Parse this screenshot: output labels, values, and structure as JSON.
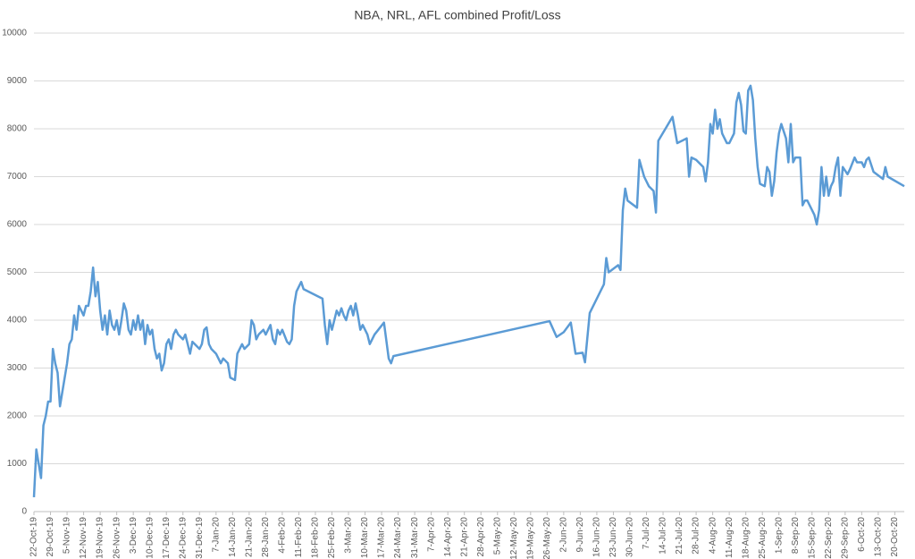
{
  "chart_data": {
    "type": "line",
    "title": "NBA, NRL, AFL combined Profit/Loss",
    "ylim": [
      0,
      10000
    ],
    "yticks": [
      0,
      1000,
      2000,
      3000,
      4000,
      5000,
      6000,
      7000,
      8000,
      9000,
      10000
    ],
    "xlim": [
      "2019-10-22",
      "2020-10-24"
    ],
    "xticks": [
      {
        "value": "2019-10-22",
        "label": "22-Oct-19"
      },
      {
        "value": "2019-10-29",
        "label": "29-Oct-19"
      },
      {
        "value": "2019-11-05",
        "label": "5-Nov-19"
      },
      {
        "value": "2019-11-12",
        "label": "12-Nov-19"
      },
      {
        "value": "2019-11-19",
        "label": "19-Nov-19"
      },
      {
        "value": "2019-11-26",
        "label": "26-Nov-19"
      },
      {
        "value": "2019-12-03",
        "label": "3-Dec-19"
      },
      {
        "value": "2019-12-10",
        "label": "10-Dec-19"
      },
      {
        "value": "2019-12-17",
        "label": "17-Dec-19"
      },
      {
        "value": "2019-12-24",
        "label": "24-Dec-19"
      },
      {
        "value": "2019-12-31",
        "label": "31-Dec-19"
      },
      {
        "value": "2020-01-07",
        "label": "7-Jan-20"
      },
      {
        "value": "2020-01-14",
        "label": "14-Jan-20"
      },
      {
        "value": "2020-01-21",
        "label": "21-Jan-20"
      },
      {
        "value": "2020-01-28",
        "label": "28-Jan-20"
      },
      {
        "value": "2020-02-04",
        "label": "4-Feb-20"
      },
      {
        "value": "2020-02-11",
        "label": "11-Feb-20"
      },
      {
        "value": "2020-02-18",
        "label": "18-Feb-20"
      },
      {
        "value": "2020-02-25",
        "label": "25-Feb-20"
      },
      {
        "value": "2020-03-03",
        "label": "3-Mar-20"
      },
      {
        "value": "2020-03-10",
        "label": "10-Mar-20"
      },
      {
        "value": "2020-03-17",
        "label": "17-Mar-20"
      },
      {
        "value": "2020-03-24",
        "label": "24-Mar-20"
      },
      {
        "value": "2020-03-31",
        "label": "31-Mar-20"
      },
      {
        "value": "2020-04-07",
        "label": "7-Apr-20"
      },
      {
        "value": "2020-04-14",
        "label": "14-Apr-20"
      },
      {
        "value": "2020-04-21",
        "label": "21-Apr-20"
      },
      {
        "value": "2020-04-28",
        "label": "28-Apr-20"
      },
      {
        "value": "2020-05-05",
        "label": "5-May-20"
      },
      {
        "value": "2020-05-12",
        "label": "12-May-20"
      },
      {
        "value": "2020-05-19",
        "label": "19-May-20"
      },
      {
        "value": "2020-05-26",
        "label": "26-May-20"
      },
      {
        "value": "2020-06-02",
        "label": "2-Jun-20"
      },
      {
        "value": "2020-06-09",
        "label": "9-Jun-20"
      },
      {
        "value": "2020-06-16",
        "label": "16-Jun-20"
      },
      {
        "value": "2020-06-23",
        "label": "23-Jun-20"
      },
      {
        "value": "2020-06-30",
        "label": "30-Jun-20"
      },
      {
        "value": "2020-07-07",
        "label": "7-Jul-20"
      },
      {
        "value": "2020-07-14",
        "label": "14-Jul-20"
      },
      {
        "value": "2020-07-21",
        "label": "21-Jul-20"
      },
      {
        "value": "2020-07-28",
        "label": "28-Jul-20"
      },
      {
        "value": "2020-08-04",
        "label": "4-Aug-20"
      },
      {
        "value": "2020-08-11",
        "label": "11-Aug-20"
      },
      {
        "value": "2020-08-18",
        "label": "18-Aug-20"
      },
      {
        "value": "2020-08-25",
        "label": "25-Aug-20"
      },
      {
        "value": "2020-09-01",
        "label": "1-Sep-20"
      },
      {
        "value": "2020-09-08",
        "label": "8-Sep-20"
      },
      {
        "value": "2020-09-15",
        "label": "15-Sep-20"
      },
      {
        "value": "2020-09-22",
        "label": "22-Sep-20"
      },
      {
        "value": "2020-09-29",
        "label": "29-Sep-20"
      },
      {
        "value": "2020-10-06",
        "label": "6-Oct-20"
      },
      {
        "value": "2020-10-13",
        "label": "13-Oct-20"
      },
      {
        "value": "2020-10-20",
        "label": "20-Oct-20"
      }
    ],
    "grid": true,
    "color": "#5b9bd5",
    "x": [
      "2019-10-22",
      "2019-10-23",
      "2019-10-24",
      "2019-10-25",
      "2019-10-26",
      "2019-10-27",
      "2019-10-28",
      "2019-10-29",
      "2019-10-30",
      "2019-10-31",
      "2019-11-01",
      "2019-11-02",
      "2019-11-03",
      "2019-11-05",
      "2019-11-06",
      "2019-11-07",
      "2019-11-08",
      "2019-11-09",
      "2019-11-10",
      "2019-11-11",
      "2019-11-12",
      "2019-11-13",
      "2019-11-14",
      "2019-11-15",
      "2019-11-16",
      "2019-11-17",
      "2019-11-18",
      "2019-11-19",
      "2019-11-20",
      "2019-11-21",
      "2019-11-22",
      "2019-11-23",
      "2019-11-24",
      "2019-11-25",
      "2019-11-26",
      "2019-11-27",
      "2019-11-28",
      "2019-11-29",
      "2019-11-30",
      "2019-12-01",
      "2019-12-02",
      "2019-12-03",
      "2019-12-04",
      "2019-12-05",
      "2019-12-06",
      "2019-12-07",
      "2019-12-08",
      "2019-12-09",
      "2019-12-10",
      "2019-12-11",
      "2019-12-12",
      "2019-12-13",
      "2019-12-14",
      "2019-12-15",
      "2019-12-16",
      "2019-12-17",
      "2019-12-18",
      "2019-12-19",
      "2019-12-20",
      "2019-12-21",
      "2019-12-22",
      "2019-12-23",
      "2019-12-24",
      "2019-12-25",
      "2019-12-26",
      "2019-12-27",
      "2019-12-28",
      "2019-12-29",
      "2019-12-31",
      "2020-01-01",
      "2020-01-02",
      "2020-01-03",
      "2020-01-04",
      "2020-01-05",
      "2020-01-07",
      "2020-01-08",
      "2020-01-09",
      "2020-01-10",
      "2020-01-12",
      "2020-01-13",
      "2020-01-15",
      "2020-01-16",
      "2020-01-17",
      "2020-01-18",
      "2020-01-19",
      "2020-01-21",
      "2020-01-22",
      "2020-01-23",
      "2020-01-24",
      "2020-01-25",
      "2020-01-27",
      "2020-01-28",
      "2020-01-29",
      "2020-01-30",
      "2020-01-31",
      "2020-02-01",
      "2020-02-02",
      "2020-02-03",
      "2020-02-04",
      "2020-02-06",
      "2020-02-07",
      "2020-02-08",
      "2020-02-09",
      "2020-02-10",
      "2020-02-11",
      "2020-02-12",
      "2020-02-13",
      "2020-02-19",
      "2020-02-21",
      "2020-02-22",
      "2020-02-23",
      "2020-02-24",
      "2020-02-25",
      "2020-02-26",
      "2020-02-27",
      "2020-02-28",
      "2020-02-29",
      "2020-03-01",
      "2020-03-02",
      "2020-03-03",
      "2020-03-04",
      "2020-03-05",
      "2020-03-06",
      "2020-03-07",
      "2020-03-08",
      "2020-03-09",
      "2020-03-10",
      "2020-03-11",
      "2020-03-12",
      "2020-03-14",
      "2020-03-18",
      "2020-03-20",
      "2020-03-21",
      "2020-03-22",
      "2020-05-27",
      "2020-05-30",
      "2020-06-02",
      "2020-06-05",
      "2020-06-07",
      "2020-06-10",
      "2020-06-11",
      "2020-06-13",
      "2020-06-19",
      "2020-06-20",
      "2020-06-21",
      "2020-06-25",
      "2020-06-26",
      "2020-06-27",
      "2020-06-28",
      "2020-06-29",
      "2020-07-03",
      "2020-07-04",
      "2020-07-06",
      "2020-07-08",
      "2020-07-10",
      "2020-07-11",
      "2020-07-12",
      "2020-07-18",
      "2020-07-20",
      "2020-07-24",
      "2020-07-25",
      "2020-07-26",
      "2020-07-28",
      "2020-07-31",
      "2020-08-01",
      "2020-08-02",
      "2020-08-03",
      "2020-08-04",
      "2020-08-05",
      "2020-08-06",
      "2020-08-07",
      "2020-08-08",
      "2020-08-10",
      "2020-08-11",
      "2020-08-13",
      "2020-08-14",
      "2020-08-15",
      "2020-08-16",
      "2020-08-17",
      "2020-08-18",
      "2020-08-19",
      "2020-08-20",
      "2020-08-21",
      "2020-08-22",
      "2020-08-23",
      "2020-08-24",
      "2020-08-26",
      "2020-08-27",
      "2020-08-28",
      "2020-08-29",
      "2020-08-30",
      "2020-08-31",
      "2020-09-01",
      "2020-09-02",
      "2020-09-04",
      "2020-09-05",
      "2020-09-06",
      "2020-09-07",
      "2020-09-08",
      "2020-09-10",
      "2020-09-11",
      "2020-09-12",
      "2020-09-13",
      "2020-09-15",
      "2020-09-16",
      "2020-09-17",
      "2020-09-18",
      "2020-09-19",
      "2020-09-20",
      "2020-09-21",
      "2020-09-22",
      "2020-09-23",
      "2020-09-24",
      "2020-09-25",
      "2020-09-26",
      "2020-09-27",
      "2020-09-28",
      "2020-09-30",
      "2020-10-01",
      "2020-10-03",
      "2020-10-04",
      "2020-10-06",
      "2020-10-07",
      "2020-10-08",
      "2020-10-09",
      "2020-10-11",
      "2020-10-15",
      "2020-10-16",
      "2020-10-17",
      "2020-10-24"
    ],
    "values": [
      300,
      1300,
      1000,
      700,
      1800,
      2000,
      2300,
      2300,
      3400,
      3100,
      2900,
      2200,
      2500,
      3100,
      3500,
      3600,
      4100,
      3800,
      4300,
      4200,
      4100,
      4300,
      4300,
      4600,
      5100,
      4500,
      4800,
      4200,
      3800,
      4100,
      3700,
      4200,
      3900,
      3800,
      4000,
      3700,
      4000,
      4350,
      4200,
      3800,
      3700,
      4000,
      3800,
      4100,
      3800,
      4000,
      3500,
      3900,
      3700,
      3800,
      3400,
      3200,
      3300,
      2950,
      3100,
      3500,
      3600,
      3400,
      3700,
      3800,
      3700,
      3650,
      3600,
      3700,
      3500,
      3300,
      3550,
      3500,
      3400,
      3500,
      3800,
      3850,
      3500,
      3400,
      3300,
      3200,
      3100,
      3200,
      3100,
      2800,
      2750,
      3300,
      3400,
      3500,
      3400,
      3500,
      4000,
      3900,
      3600,
      3700,
      3800,
      3700,
      3800,
      3900,
      3600,
      3500,
      3800,
      3700,
      3800,
      3550,
      3500,
      3600,
      4300,
      4600,
      4700,
      4800,
      4650,
      4500,
      4450,
      3900,
      3500,
      4000,
      3800,
      4000,
      4200,
      4100,
      4250,
      4100,
      4000,
      4200,
      4300,
      4100,
      4350,
      4100,
      3800,
      3900,
      3800,
      3700,
      3500,
      3700,
      3950,
      3200,
      3100,
      3250,
      3980,
      3650,
      3750,
      3950,
      3300,
      3320,
      3120,
      4150,
      4750,
      5300,
      5000,
      5150,
      5050,
      6300,
      6750,
      6500,
      6350,
      7350,
      7000,
      6800,
      6700,
      6250,
      7750,
      8250,
      7700,
      7800,
      7000,
      7400,
      7350,
      7200,
      6900,
      7300,
      8100,
      7900,
      8400,
      8000,
      8200,
      7900,
      7700,
      7700,
      7900,
      8550,
      8750,
      8500,
      7950,
      7900,
      8800,
      8900,
      8600,
      7800,
      7200,
      6850,
      6800,
      7200,
      7100,
      6600,
      6900,
      7500,
      7900,
      8100,
      7800,
      7300,
      8100,
      7300,
      7400,
      7400,
      6400,
      6500,
      6500,
      6300,
      6200,
      6000,
      6300,
      7200,
      6600,
      7000,
      6600,
      6800,
      6900,
      7200,
      7400,
      6600,
      7200,
      7050,
      7150,
      7400,
      7300,
      7300,
      7200,
      7350,
      7400,
      7100,
      6950,
      7200,
      7000,
      6800
    ]
  }
}
